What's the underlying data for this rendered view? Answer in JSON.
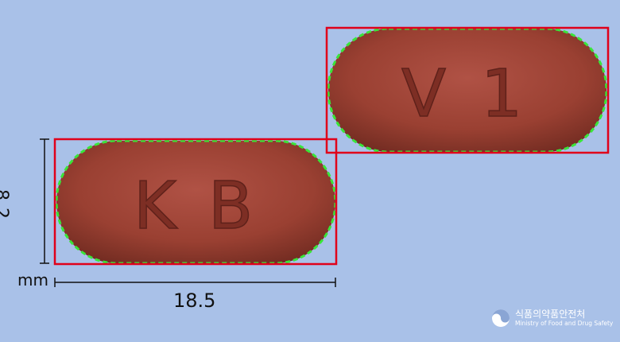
{
  "pills": [
    {
      "imprint_left": "K",
      "imprint_right": "B"
    },
    {
      "imprint_left": "V",
      "imprint_right": "1"
    }
  ],
  "dimensions": {
    "height": "8.2",
    "unit": "mm",
    "width": "18.5"
  },
  "logo": {
    "korean": "식품의약품안전처",
    "english": "Ministry of Food and Drug Safety"
  },
  "colors": {
    "background": "#a9c1e8",
    "pill": "#9a4032",
    "box": "#e0001a",
    "edge": "#39e639"
  }
}
